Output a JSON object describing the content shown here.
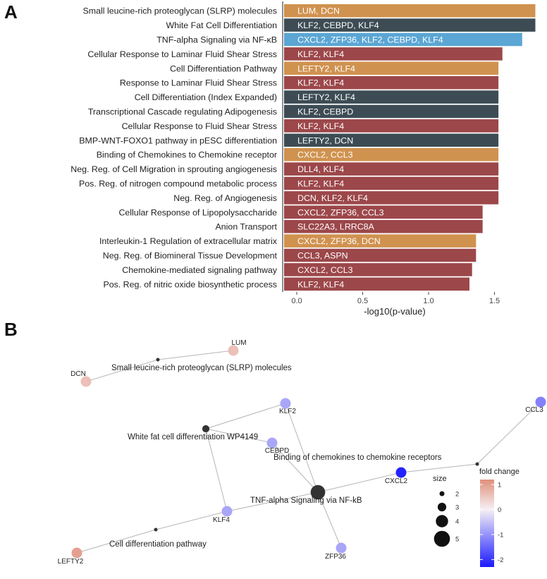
{
  "panels": {
    "a": "A",
    "b": "B"
  },
  "chart_data": [
    {
      "type": "bar",
      "orientation": "horizontal",
      "xlabel": "-log10(p-value)",
      "xlim": [
        0,
        1.85
      ],
      "xticks": [
        0.0,
        0.5,
        1.0,
        1.5
      ],
      "xtick_labels": [
        "0.0",
        "0.5",
        "1.0",
        "1.5"
      ],
      "grid": false,
      "legend": "none",
      "colors": {
        "orange": "#d0924f",
        "dark": "#3d4c54",
        "blue": "#5ba6d4",
        "red": "#9c474a"
      },
      "categories": [
        "Small leucine-rich proteoglycan (SLRP) molecules",
        "White Fat Cell Differentiation",
        "TNF-alpha Signaling via NF-κB",
        "Cellular Response to Laminar Fluid Shear Stress",
        "Cell Differentiation Pathway",
        "Response to Laminar Fluid Shear Stress",
        "Cell Differentiation (Index Expanded)",
        "Transcriptional Cascade regulating Adipogenesis",
        "Cellular Response to Fluid Shear Stress",
        "BMP-WNT-FOXO1 pathway in pESC differentiation",
        "Binding of Chemokines to Chemokine receptor",
        "Neg. Reg. of Cell Migration in sprouting angiogenesis",
        "Pos. Reg. of nitrogen compound metabolic process",
        "Neg. Reg. of Angiogenesis",
        "Cellular Response of Lipopolysaccharide",
        "Anion Transport",
        "Interleukin-1 Regulation of extracellular matrix",
        "Neg. Reg. of Biomineral Tissue Development",
        "Chemokine-mediated signaling pathway",
        "Pos. Reg. of nitric oxide biosynthetic process"
      ],
      "values": [
        1.81,
        1.81,
        1.71,
        1.56,
        1.53,
        1.53,
        1.53,
        1.53,
        1.53,
        1.53,
        1.53,
        1.53,
        1.53,
        1.53,
        1.41,
        1.41,
        1.36,
        1.36,
        1.33,
        1.31
      ],
      "bar_text": [
        "LUM, DCN",
        "KLF2, CEBPD, KLF4",
        "CXCL2, ZFP36, KLF2, CEBPD, KLF4",
        "KLF2, KLF4",
        "LEFTY2, KLF4",
        "KLF2, KLF4",
        "LEFTY2, KLF4",
        "KLF2, CEBPD",
        "KLF2, KLF4",
        "LEFTY2, DCN",
        "CXCL2, CCL3",
        "DLL4, KLF4",
        "KLF2, KLF4",
        "DCN, KLF2, KLF4",
        "CXCL2, ZFP36, CCL3",
        "SLC22A3, LRRC8A",
        "CXCL2, ZFP36, DCN",
        "CCL3, ASPN",
        "CXCL2, CCL3",
        "KLF2, KLF4"
      ],
      "bar_colors": [
        "orange",
        "dark",
        "blue",
        "red",
        "orange",
        "red",
        "dark",
        "dark",
        "red",
        "dark",
        "orange",
        "red",
        "red",
        "red",
        "red",
        "red",
        "orange",
        "red",
        "red",
        "red"
      ]
    },
    {
      "type": "network",
      "size_legend": {
        "title": "size",
        "values": [
          2,
          3,
          4,
          5
        ],
        "labels": [
          "2",
          "3",
          "4",
          "5"
        ]
      },
      "color_legend": {
        "title": "fold change",
        "range": [
          -2.3,
          1.2
        ],
        "ticks": [
          1,
          0,
          -1,
          -2
        ],
        "tick_labels": [
          "1",
          "0",
          "-1",
          "-2"
        ],
        "low": "#1a1aff",
        "mid": "#f5f0f5",
        "high": "#e0907a"
      },
      "pathway_color": "#333333",
      "edge_color": "#b5b5b5",
      "pathways": [
        {
          "id": "slrp",
          "label": "Small leucine-rich proteoglycan (SLRP) molecules",
          "size": 2
        },
        {
          "id": "wfcd",
          "label": "White fat cell differentiation WP4149",
          "size": 3
        },
        {
          "id": "tnf",
          "label": "TNF-alpha Signaling via NF-kB",
          "size": 5
        },
        {
          "id": "chemo",
          "label": "Binding of chemokines to chemokine receptors",
          "size": 2
        },
        {
          "id": "cdp",
          "label": "Cell differentiation pathway",
          "size": 2
        }
      ],
      "genes": [
        {
          "id": "LUM",
          "label": "LUM",
          "fold_change": 0.6
        },
        {
          "id": "DCN",
          "label": "DCN",
          "fold_change": 0.6
        },
        {
          "id": "KLF2",
          "label": "KLF2",
          "fold_change": -0.8
        },
        {
          "id": "CEBPD",
          "label": "CEBPD",
          "fold_change": -0.8
        },
        {
          "id": "KLF4",
          "label": "KLF4",
          "fold_change": -0.8
        },
        {
          "id": "CXCL2",
          "label": "CXCL2",
          "fold_change": -2.2
        },
        {
          "id": "CCL3",
          "label": "CCL3",
          "fold_change": -1.2
        },
        {
          "id": "ZFP36",
          "label": "ZFP36",
          "fold_change": -0.8
        },
        {
          "id": "LEFTY2",
          "label": "LEFTY2",
          "fold_change": 1.0
        }
      ],
      "edges": [
        [
          "slrp",
          "LUM"
        ],
        [
          "slrp",
          "DCN"
        ],
        [
          "wfcd",
          "KLF2"
        ],
        [
          "wfcd",
          "CEBPD"
        ],
        [
          "wfcd",
          "KLF4"
        ],
        [
          "tnf",
          "KLF2"
        ],
        [
          "tnf",
          "CEBPD"
        ],
        [
          "tnf",
          "CXCL2"
        ],
        [
          "tnf",
          "ZFP36"
        ],
        [
          "tnf",
          "KLF4"
        ],
        [
          "chemo",
          "CXCL2"
        ],
        [
          "chemo",
          "CCL3"
        ],
        [
          "cdp",
          "KLF4"
        ],
        [
          "cdp",
          "LEFTY2"
        ]
      ]
    }
  ]
}
